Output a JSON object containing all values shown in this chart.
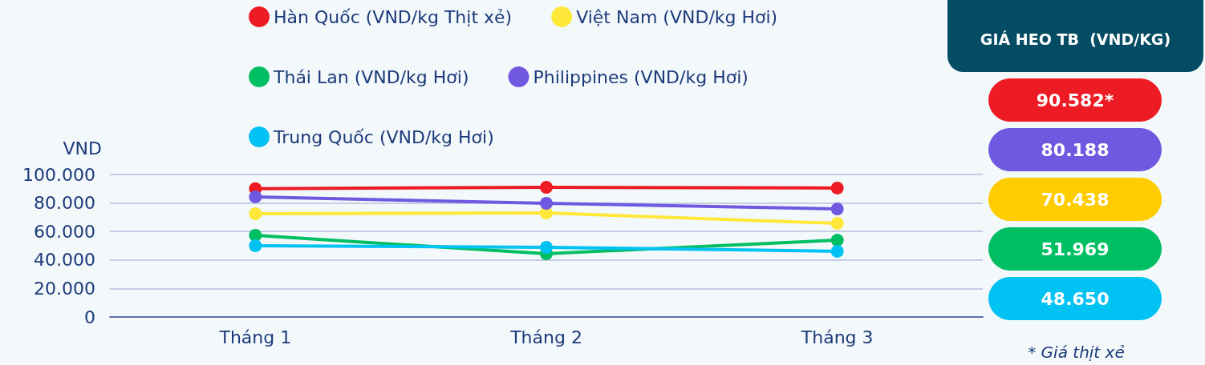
{
  "chart_data": [
    {
      "type": "line",
      "ylabel": "VND",
      "categories": [
        "Tháng 1",
        "Tháng 2",
        "Tháng 3"
      ],
      "series": [
        {
          "name": "Hàn Quốc (VND/kg Thịt xẻ)",
          "color": "#ed1c24",
          "values": [
            90000,
            91000,
            90500
          ]
        },
        {
          "name": "Việt Nam (VND/kg Hơi)",
          "color": "#ffe83a",
          "values": [
            72500,
            73000,
            65700
          ]
        },
        {
          "name": "Thái Lan (VND/kg Hơi)",
          "color": "#00bf63",
          "values": [
            57300,
            44400,
            53900
          ]
        },
        {
          "name": "Philippines (VND/kg Hơi)",
          "color": "#7059e0",
          "values": [
            84300,
            79800,
            75800
          ]
        },
        {
          "name": "Trung Quốc (VND/kg Hơi)",
          "color": "#00c2f3",
          "values": [
            50000,
            48900,
            46100
          ]
        }
      ],
      "ylim": [
        0,
        100000
      ],
      "yticks": [
        0,
        {
          "value": 20000,
          "label": "20.000"
        },
        {
          "value": 40000,
          "label": "40.000"
        },
        {
          "value": 60000,
          "label": "60.000"
        },
        {
          "value": 80000,
          "label": "80.000"
        },
        {
          "value": 100000,
          "label": "100.000"
        }
      ],
      "grid": "y",
      "legend": "top",
      "marker": "circle",
      "line_style": "solid"
    },
    {
      "type": "other",
      "title": "GIÁ HEO TB  (VND/KG)",
      "colors": [
        "#ed1c24",
        "#7059e0",
        "#ffcc00",
        "#00bf63",
        "#00c2f3"
      ],
      "annotations": [
        "90.582*",
        "80.188",
        "70.438",
        "51.969",
        "48.650",
        "* Giá thịt xẻ"
      ]
    }
  ]
}
